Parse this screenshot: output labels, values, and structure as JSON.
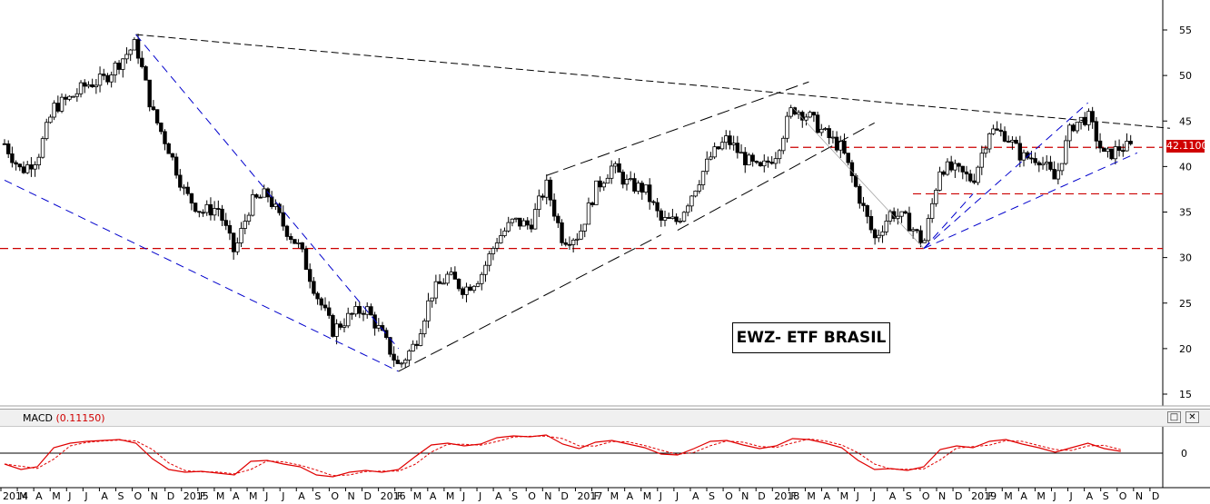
{
  "title": "EWZ- ETF BRASIL",
  "last_price_label": "42.1100",
  "macd": {
    "label": "MACD",
    "value": "(0.11150)"
  },
  "buttons": {
    "maximize": "□",
    "close": "✕"
  },
  "colors": {
    "up": "#ffffff",
    "down": "#000000",
    "macd": "#e00000",
    "signal": "#e00000",
    "trend_black": "#000000",
    "trend_blue": "#0000cc",
    "support": "#cc0000"
  },
  "chart_data": [
    {
      "type": "candlestick",
      "title": "EWZ- ETF BRASIL",
      "ylim": [
        14,
        57
      ],
      "yticks": [
        15,
        20,
        25,
        30,
        35,
        40,
        45,
        50,
        55
      ],
      "x_labels": [
        "2014",
        "M",
        "A",
        "M",
        "J",
        "J",
        "A",
        "S",
        "O",
        "N",
        "D",
        "2015",
        "F",
        "M",
        "A",
        "M",
        "J",
        "J",
        "A",
        "S",
        "O",
        "N",
        "D",
        "2016",
        "F",
        "M",
        "A",
        "M",
        "J",
        "J",
        "A",
        "S",
        "O",
        "N",
        "D",
        "2017",
        "F",
        "M",
        "A",
        "M",
        "J",
        "J",
        "A",
        "S",
        "O",
        "N",
        "D",
        "2018",
        "F",
        "M",
        "A",
        "M",
        "J",
        "J",
        "A",
        "S",
        "O",
        "N",
        "D",
        "2019",
        "F",
        "M",
        "A",
        "M",
        "J",
        "J",
        "A",
        "S",
        "O",
        "N",
        "D"
      ],
      "last_price": 42.11,
      "price_path": [
        [
          "2014-01",
          42.5
        ],
        [
          "2014-02",
          39.5
        ],
        [
          "2014-03",
          41
        ],
        [
          "2014-04",
          46.5
        ],
        [
          "2014-05",
          47.5
        ],
        [
          "2014-06",
          49
        ],
        [
          "2014-07",
          49.5
        ],
        [
          "2014-08",
          51.5
        ],
        [
          "2014-09",
          53.5
        ],
        [
          "2014-10",
          46
        ],
        [
          "2014-11",
          42
        ],
        [
          "2014-12",
          37
        ],
        [
          "2015-01",
          35
        ],
        [
          "2015-02",
          35.5
        ],
        [
          "2015-03",
          30.5
        ],
        [
          "2015-04",
          36
        ],
        [
          "2015-05",
          37
        ],
        [
          "2015-06",
          33.5
        ],
        [
          "2015-07",
          31
        ],
        [
          "2015-08",
          26
        ],
        [
          "2015-09",
          22
        ],
        [
          "2015-10",
          23.5
        ],
        [
          "2015-11",
          24.5
        ],
        [
          "2015-12",
          21.5
        ],
        [
          "2016-01",
          18
        ],
        [
          "2016-02",
          20.5
        ],
        [
          "2016-03",
          26
        ],
        [
          "2016-04",
          28
        ],
        [
          "2016-05",
          26.5
        ],
        [
          "2016-06",
          28
        ],
        [
          "2016-07",
          32
        ],
        [
          "2016-08",
          34
        ],
        [
          "2016-09",
          33.5
        ],
        [
          "2016-10",
          38
        ],
        [
          "2016-11",
          32
        ],
        [
          "2016-12",
          32.5
        ],
        [
          "2017-01",
          37.5
        ],
        [
          "2017-02",
          40
        ],
        [
          "2017-03",
          38
        ],
        [
          "2017-04",
          37.5
        ],
        [
          "2017-05",
          34
        ],
        [
          "2017-06",
          34
        ],
        [
          "2017-07",
          37.5
        ],
        [
          "2017-08",
          41
        ],
        [
          "2017-09",
          43
        ],
        [
          "2017-10",
          41
        ],
        [
          "2017-11",
          39.5
        ],
        [
          "2017-12",
          41.5
        ],
        [
          "2018-01",
          46.5
        ],
        [
          "2018-02",
          45.5
        ],
        [
          "2018-03",
          43.5
        ],
        [
          "2018-04",
          42
        ],
        [
          "2018-05",
          37
        ],
        [
          "2018-06",
          32
        ],
        [
          "2018-07",
          35
        ],
        [
          "2018-08",
          34
        ],
        [
          "2018-09",
          31.5
        ],
        [
          "2018-10",
          40
        ],
        [
          "2018-11",
          39.5
        ],
        [
          "2018-12",
          38.5
        ],
        [
          "2019-01",
          44
        ],
        [
          "2019-02",
          43.5
        ],
        [
          "2019-03",
          41
        ],
        [
          "2019-04",
          41
        ],
        [
          "2019-05",
          38.5
        ],
        [
          "2019-06",
          44.5
        ],
        [
          "2019-07",
          45.5
        ],
        [
          "2019-08",
          41
        ],
        [
          "2019-09",
          42.11
        ]
      ],
      "levels": [
        31,
        37,
        42.11
      ],
      "trendlines": [
        {
          "style": "black-dash",
          "from": [
            "2014-09",
            54.5
          ],
          "to": [
            "2019-12",
            44.2
          ]
        },
        {
          "style": "blue-dash",
          "from": [
            "2014-09",
            54.5
          ],
          "to": [
            "2016-01",
            20
          ]
        },
        {
          "style": "blue-dash",
          "from": [
            "2014-01",
            38.5
          ],
          "to": [
            "2016-01",
            17.5
          ]
        },
        {
          "style": "black-longdash",
          "from": [
            "2016-01",
            17.5
          ],
          "to": [
            "2017-05",
            32.5
          ]
        },
        {
          "style": "black-longdash",
          "from": [
            "2016-10",
            39
          ],
          "to": [
            "2018-02",
            49.3
          ]
        },
        {
          "style": "black-longdash",
          "from": [
            "2017-06",
            33
          ],
          "to": [
            "2018-06",
            44.8
          ]
        },
        {
          "style": "blue-dash",
          "from": [
            "2018-09",
            31
          ],
          "to": [
            "2019-07",
            47
          ]
        },
        {
          "style": "blue-dash",
          "from": [
            "2018-09",
            31
          ],
          "to": [
            "2019-10",
            41.5
          ]
        },
        {
          "style": "gray-thin",
          "from": [
            "2018-01",
            46.5
          ],
          "to": [
            "2018-09",
            31
          ]
        },
        {
          "style": "blue-dash",
          "from": [
            "2018-09",
            31
          ],
          "to": [
            "2018-12",
            37
          ]
        }
      ]
    },
    {
      "type": "line",
      "title": "MACD",
      "yticks": [
        0
      ],
      "series": [
        {
          "name": "MACD",
          "values": [
            -1.2,
            -1.8,
            -1.5,
            0.6,
            1.1,
            1.3,
            1.4,
            1.5,
            1.1,
            -0.6,
            -1.8,
            -2.1,
            -2.0,
            -2.2,
            -2.4,
            -0.9,
            -0.8,
            -1.2,
            -1.5,
            -2.4,
            -2.6,
            -2.1,
            -1.9,
            -2.1,
            -1.8,
            -0.4,
            0.9,
            1.1,
            0.8,
            1.0,
            1.7,
            1.9,
            1.8,
            2.0,
            1.0,
            0.5,
            1.2,
            1.4,
            1.0,
            0.6,
            -0.1,
            -0.2,
            0.5,
            1.3,
            1.4,
            0.9,
            0.5,
            0.8,
            1.6,
            1.5,
            1.1,
            0.6,
            -0.8,
            -1.8,
            -1.7,
            -1.9,
            -1.5,
            0.4,
            0.8,
            0.6,
            1.3,
            1.5,
            1.0,
            0.6,
            0.1,
            0.6,
            1.1,
            0.5,
            0.2
          ]
        }
      ]
    }
  ]
}
